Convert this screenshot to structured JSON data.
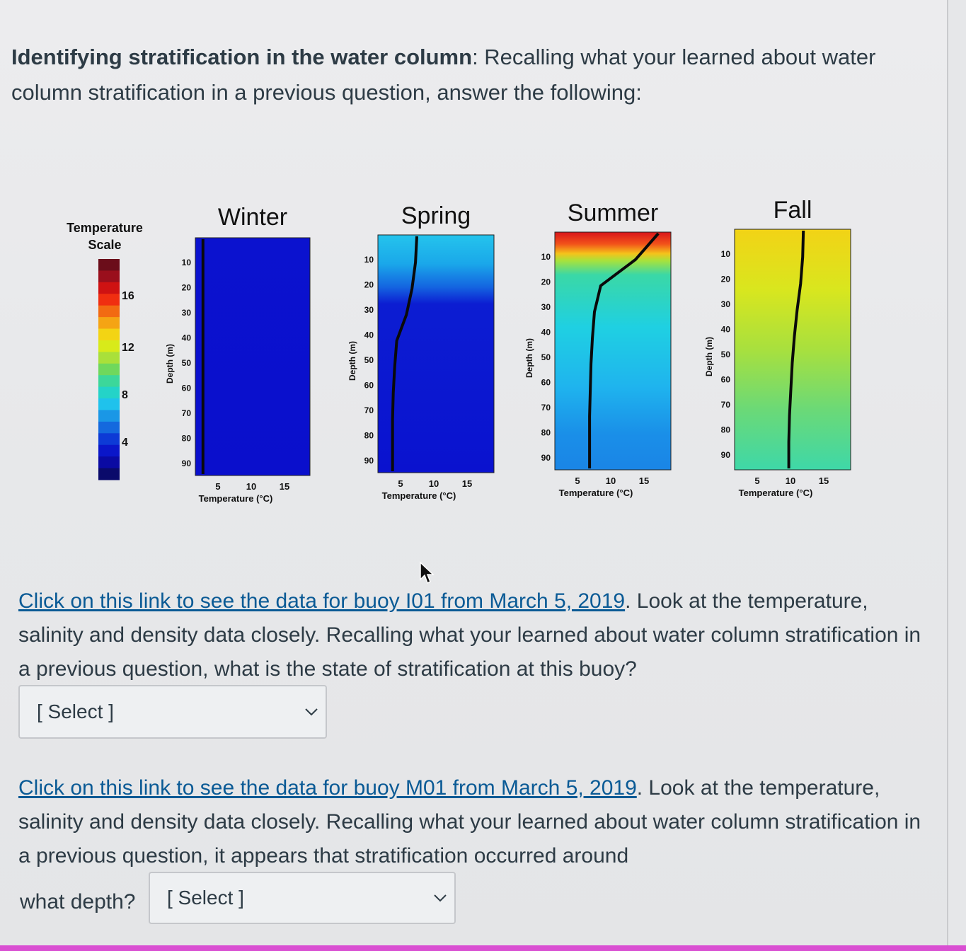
{
  "intro": {
    "bold": "Identifying stratification in the water column",
    "rest": ": Recalling what your learned about water column stratification in a previous question, answer the following:"
  },
  "figure": {
    "scale_title_line1": "Temperature",
    "scale_title_line2": "Scale",
    "scale_ticks": [
      "16",
      "12",
      "8",
      "4"
    ],
    "scale_colors": [
      "#6b0d1a",
      "#9a0f1c",
      "#cf1212",
      "#f02e10",
      "#f26a12",
      "#f5a414",
      "#f3d414",
      "#d8ea1a",
      "#a9e03a",
      "#6fd85c",
      "#3cd79a",
      "#24d3c8",
      "#1fc2ec",
      "#1a97e6",
      "#1469de",
      "#0d3ad6",
      "#0a16c9",
      "#0a0aa3",
      "#0a0a6b"
    ],
    "depth_ticks": [
      "10",
      "20",
      "30",
      "40",
      "50",
      "60",
      "70",
      "80",
      "90"
    ],
    "depth_axis_label": "Depth (m)",
    "temp_ticks": [
      "5",
      "10",
      "15"
    ],
    "temp_axis_label": "Temperature (°C)",
    "panels": [
      {
        "title": "Winter",
        "profile_temp": [
          3,
          3,
          3,
          3,
          3,
          3,
          3,
          3,
          3,
          3
        ]
      },
      {
        "title": "Spring",
        "profile_temp": [
          7.5,
          7.3,
          6.8,
          6.0,
          4.6,
          4.3,
          4.1,
          4.0,
          4.0,
          4.0
        ]
      },
      {
        "title": "Summer",
        "profile_temp": [
          16.8,
          13.5,
          8.5,
          7.6,
          7.3,
          7.1,
          7.0,
          6.9,
          6.9,
          6.9
        ]
      },
      {
        "title": "Fall",
        "profile_temp": [
          11.8,
          11.7,
          11.4,
          10.9,
          10.5,
          10.2,
          10.0,
          9.8,
          9.7,
          9.7
        ]
      }
    ]
  },
  "q1": {
    "link": "Click on this link to see the data for buoy I01 from March 5, 2019",
    "text": ".  Look at the temperature, salinity and density data closely.   Recalling what your learned about water column stratification in a previous question, what is the state of stratification at this buoy?",
    "select": "[ Select ]"
  },
  "q2": {
    "link": "Click on this link to see the data for buoy M01 from March 5, 2019",
    "text": ".  Look at the temperature, salinity and density data closely.   Recalling what your learned about water column stratification in a previous question, it appears that stratification occurred around",
    "depth_label": "what depth?",
    "select": "[ Select ]"
  }
}
